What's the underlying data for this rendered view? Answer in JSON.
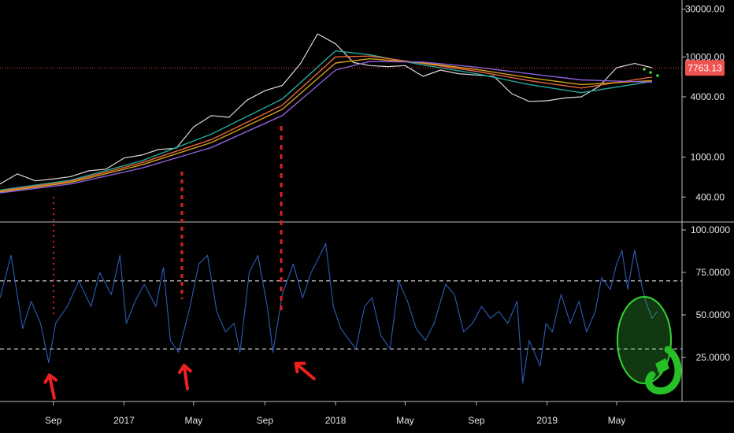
{
  "chart_data": [
    {
      "type": "line",
      "scale": "log",
      "price_label": "7763.13",
      "price_value": 7763.13,
      "y_ticks": [
        {
          "value": 30000,
          "label": "30000.00"
        },
        {
          "value": 10000,
          "label": "10000.00"
        },
        {
          "value": 4000,
          "label": "4000.00"
        },
        {
          "value": 1000,
          "label": "1000.00"
        },
        {
          "value": 400,
          "label": "400.00"
        }
      ],
      "ylim": [
        280,
        32000
      ],
      "x_ticks": [
        "Sep",
        "2017",
        "May",
        "Sep",
        "2018",
        "May",
        "Sep",
        "2019",
        "May"
      ],
      "x_range": [
        "2016-06-01",
        "2019-07-31"
      ],
      "series": [
        {
          "color": "#d9d9d9",
          "values": [
            [
              "2016-06-01",
              540
            ],
            [
              "2016-07-01",
              680
            ],
            [
              "2016-08-01",
              580
            ],
            [
              "2016-09-01",
              605
            ],
            [
              "2016-10-01",
              640
            ],
            [
              "2016-11-01",
              730
            ],
            [
              "2016-12-01",
              760
            ],
            [
              "2017-01-01",
              980
            ],
            [
              "2017-02-01",
              1050
            ],
            [
              "2017-03-01",
              1190
            ],
            [
              "2017-04-01",
              1230
            ],
            [
              "2017-05-01",
              2000
            ],
            [
              "2017-06-01",
              2600
            ],
            [
              "2017-07-01",
              2500
            ],
            [
              "2017-08-01",
              3700
            ],
            [
              "2017-09-01",
              4600
            ],
            [
              "2017-10-01",
              5200
            ],
            [
              "2017-11-01",
              8500
            ],
            [
              "2017-12-01",
              17000
            ],
            [
              "2018-01-01",
              13500
            ],
            [
              "2018-02-01",
              8800
            ],
            [
              "2018-03-01",
              8200
            ],
            [
              "2018-04-01",
              8000
            ],
            [
              "2018-05-01",
              8200
            ],
            [
              "2018-06-01",
              6400
            ],
            [
              "2018-07-01",
              7400
            ],
            [
              "2018-08-01",
              6800
            ],
            [
              "2018-09-01",
              6600
            ],
            [
              "2018-10-01",
              6400
            ],
            [
              "2018-11-01",
              4300
            ],
            [
              "2018-12-01",
              3600
            ],
            [
              "2019-01-01",
              3650
            ],
            [
              "2019-02-01",
              3900
            ],
            [
              "2019-03-01",
              4000
            ],
            [
              "2019-04-01",
              5100
            ],
            [
              "2019-05-01",
              7800
            ],
            [
              "2019-06-01",
              8600
            ],
            [
              "2019-07-01",
              7800
            ]
          ]
        },
        {
          "color": "#26a69a",
          "values": [
            [
              "2016-06-01",
              470
            ],
            [
              "2016-10-01",
              590
            ],
            [
              "2017-02-01",
              920
            ],
            [
              "2017-06-01",
              1700
            ],
            [
              "2017-10-01",
              3800
            ],
            [
              "2018-01-01",
              11500
            ],
            [
              "2018-03-01",
              10500
            ],
            [
              "2018-06-01",
              8300
            ],
            [
              "2018-09-01",
              6800
            ],
            [
              "2018-12-01",
              5300
            ],
            [
              "2019-03-01",
              4400
            ],
            [
              "2019-07-01",
              5700
            ]
          ]
        },
        {
          "color": "#e8683a",
          "values": [
            [
              "2016-06-01",
              460
            ],
            [
              "2016-10-01",
              575
            ],
            [
              "2017-02-01",
              880
            ],
            [
              "2017-06-01",
              1500
            ],
            [
              "2017-10-01",
              3300
            ],
            [
              "2018-01-01",
              10000
            ],
            [
              "2018-03-01",
              10200
            ],
            [
              "2018-06-01",
              8600
            ],
            [
              "2018-09-01",
              7200
            ],
            [
              "2018-12-01",
              5800
            ],
            [
              "2019-03-01",
              4900
            ],
            [
              "2019-07-01",
              6300
            ]
          ]
        },
        {
          "color": "#d4a017",
          "values": [
            [
              "2016-06-01",
              450
            ],
            [
              "2016-10-01",
              560
            ],
            [
              "2017-02-01",
              840
            ],
            [
              "2017-06-01",
              1400
            ],
            [
              "2017-10-01",
              3000
            ],
            [
              "2018-01-01",
              8700
            ],
            [
              "2018-03-01",
              9600
            ],
            [
              "2018-06-01",
              8700
            ],
            [
              "2018-09-01",
              7500
            ],
            [
              "2018-12-01",
              6200
            ],
            [
              "2019-03-01",
              5300
            ],
            [
              "2019-07-01",
              5800
            ]
          ]
        },
        {
          "color": "#8e5fd8",
          "values": [
            [
              "2016-06-01",
              440
            ],
            [
              "2016-10-01",
              540
            ],
            [
              "2017-02-01",
              780
            ],
            [
              "2017-06-01",
              1250
            ],
            [
              "2017-10-01",
              2600
            ],
            [
              "2018-01-01",
              7400
            ],
            [
              "2018-03-01",
              9000
            ],
            [
              "2018-06-01",
              8900
            ],
            [
              "2018-09-01",
              7900
            ],
            [
              "2018-12-01",
              6800
            ],
            [
              "2019-03-01",
              5900
            ],
            [
              "2019-07-01",
              5600
            ]
          ]
        }
      ]
    },
    {
      "type": "line",
      "series_color": "#2e5cb8",
      "ylim": [
        0,
        100
      ],
      "y_ticks": [
        {
          "value": 100,
          "label": "100.0000"
        },
        {
          "value": 75,
          "label": "75.0000"
        },
        {
          "value": 50,
          "label": "50.0000"
        },
        {
          "value": 25,
          "label": "25.0000"
        }
      ],
      "reference_lines": [
        70,
        30
      ],
      "x_range": [
        "2016-06-01",
        "2019-07-31"
      ],
      "values": [
        [
          "2016-06-01",
          60
        ],
        [
          "2016-06-20",
          85
        ],
        [
          "2016-07-10",
          42
        ],
        [
          "2016-07-25",
          58
        ],
        [
          "2016-08-10",
          45
        ],
        [
          "2016-08-24",
          22
        ],
        [
          "2016-09-05",
          45
        ],
        [
          "2016-09-25",
          55
        ],
        [
          "2016-10-15",
          70
        ],
        [
          "2016-11-05",
          55
        ],
        [
          "2016-11-20",
          75
        ],
        [
          "2016-12-10",
          62
        ],
        [
          "2016-12-25",
          85
        ],
        [
          "2017-01-05",
          45
        ],
        [
          "2017-01-20",
          58
        ],
        [
          "2017-02-05",
          68
        ],
        [
          "2017-02-25",
          55
        ],
        [
          "2017-03-10",
          78
        ],
        [
          "2017-03-22",
          35
        ],
        [
          "2017-04-05",
          28
        ],
        [
          "2017-04-25",
          55
        ],
        [
          "2017-05-10",
          80
        ],
        [
          "2017-05-25",
          85
        ],
        [
          "2017-06-10",
          52
        ],
        [
          "2017-06-25",
          40
        ],
        [
          "2017-07-10",
          45
        ],
        [
          "2017-07-20",
          28
        ],
        [
          "2017-08-05",
          75
        ],
        [
          "2017-08-20",
          85
        ],
        [
          "2017-09-05",
          55
        ],
        [
          "2017-09-15",
          28
        ],
        [
          "2017-10-01",
          62
        ],
        [
          "2017-10-20",
          80
        ],
        [
          "2017-11-05",
          60
        ],
        [
          "2017-11-20",
          75
        ],
        [
          "2017-12-05",
          85
        ],
        [
          "2017-12-15",
          92
        ],
        [
          "2017-12-28",
          55
        ],
        [
          "2018-01-10",
          42
        ],
        [
          "2018-01-25",
          35
        ],
        [
          "2018-02-05",
          30
        ],
        [
          "2018-02-20",
          55
        ],
        [
          "2018-03-05",
          60
        ],
        [
          "2018-03-20",
          38
        ],
        [
          "2018-04-05",
          30
        ],
        [
          "2018-04-20",
          70
        ],
        [
          "2018-05-05",
          58
        ],
        [
          "2018-05-20",
          42
        ],
        [
          "2018-06-05",
          35
        ],
        [
          "2018-06-20",
          45
        ],
        [
          "2018-07-10",
          68
        ],
        [
          "2018-07-25",
          62
        ],
        [
          "2018-08-10",
          40
        ],
        [
          "2018-08-25",
          45
        ],
        [
          "2018-09-10",
          55
        ],
        [
          "2018-09-25",
          48
        ],
        [
          "2018-10-10",
          52
        ],
        [
          "2018-10-25",
          45
        ],
        [
          "2018-11-10",
          58
        ],
        [
          "2018-11-20",
          10
        ],
        [
          "2018-12-01",
          35
        ],
        [
          "2018-12-20",
          20
        ],
        [
          "2018-12-30",
          45
        ],
        [
          "2019-01-10",
          40
        ],
        [
          "2019-01-25",
          62
        ],
        [
          "2019-02-10",
          45
        ],
        [
          "2019-02-25",
          58
        ],
        [
          "2019-03-10",
          40
        ],
        [
          "2019-03-25",
          52
        ],
        [
          "2019-04-05",
          72
        ],
        [
          "2019-04-20",
          65
        ],
        [
          "2019-05-01",
          80
        ],
        [
          "2019-05-10",
          88
        ],
        [
          "2019-05-20",
          65
        ],
        [
          "2019-06-01",
          88
        ],
        [
          "2019-06-10",
          72
        ],
        [
          "2019-06-20",
          58
        ],
        [
          "2019-07-01",
          48
        ],
        [
          "2019-07-10",
          52
        ]
      ]
    }
  ]
}
